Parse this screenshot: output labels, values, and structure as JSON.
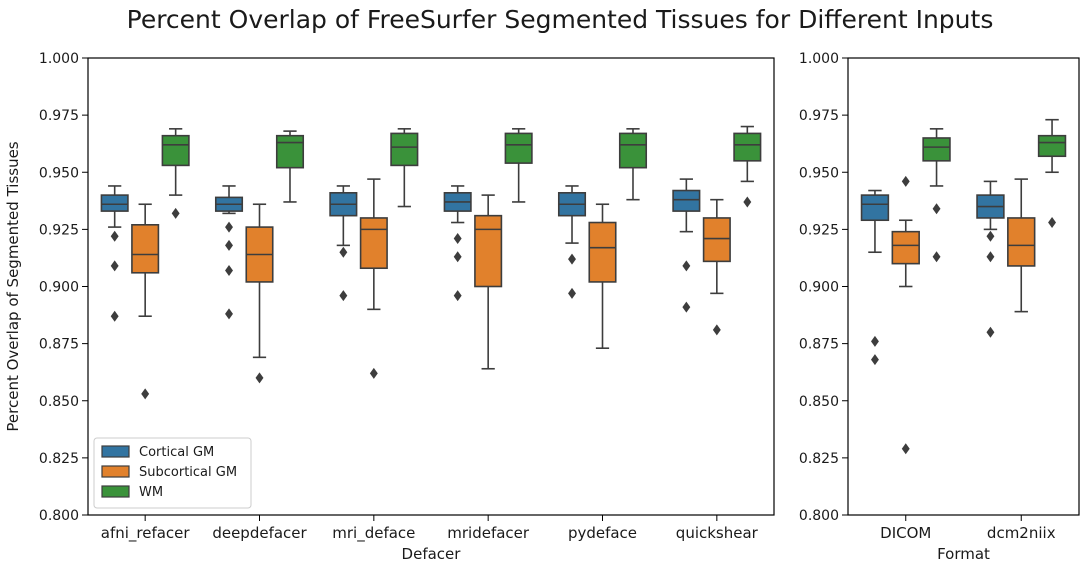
{
  "title": "Percent Overlap of FreeSurfer Segmented Tissues for Different Inputs",
  "colors": {
    "Cortical GM": "#3274a1",
    "Subcortical GM": "#e1812c",
    "WM": "#3a923a",
    "edge": "#3d3d3d",
    "outlier": "#3d3d3d"
  },
  "chart_data": [
    {
      "type": "box",
      "id": "defacer",
      "xlabel": "Defacer",
      "ylabel": "Percent Overlap of Segmented Tissues",
      "ylim": [
        0.8,
        1.0
      ],
      "yticks": [
        "0.800",
        "0.825",
        "0.850",
        "0.875",
        "0.900",
        "0.925",
        "0.950",
        "0.975",
        "1.000"
      ],
      "categories": [
        "afni_refacer",
        "deepdefacer",
        "mri_deface",
        "mridefacer",
        "pydeface",
        "quickshear"
      ],
      "legend": {
        "position": "lower-left",
        "entries": [
          "Cortical GM",
          "Subcortical GM",
          "WM"
        ]
      },
      "series": [
        {
          "name": "Cortical GM",
          "boxes": [
            {
              "min": 0.926,
              "q1": 0.933,
              "median": 0.936,
              "q3": 0.94,
              "max": 0.944,
              "outliers": [
                0.922,
                0.909,
                0.887
              ]
            },
            {
              "min": 0.932,
              "q1": 0.933,
              "median": 0.936,
              "q3": 0.939,
              "max": 0.944,
              "outliers": [
                0.926,
                0.918,
                0.907,
                0.888
              ]
            },
            {
              "min": 0.918,
              "q1": 0.931,
              "median": 0.936,
              "q3": 0.941,
              "max": 0.944,
              "outliers": [
                0.915,
                0.896
              ]
            },
            {
              "min": 0.928,
              "q1": 0.933,
              "median": 0.937,
              "q3": 0.941,
              "max": 0.944,
              "outliers": [
                0.921,
                0.913,
                0.896
              ]
            },
            {
              "min": 0.919,
              "q1": 0.931,
              "median": 0.936,
              "q3": 0.941,
              "max": 0.944,
              "outliers": [
                0.912,
                0.897
              ]
            },
            {
              "min": 0.924,
              "q1": 0.933,
              "median": 0.938,
              "q3": 0.942,
              "max": 0.947,
              "outliers": [
                0.909,
                0.891
              ]
            }
          ]
        },
        {
          "name": "Subcortical GM",
          "boxes": [
            {
              "min": 0.887,
              "q1": 0.906,
              "median": 0.914,
              "q3": 0.927,
              "max": 0.936,
              "outliers": [
                0.853
              ]
            },
            {
              "min": 0.869,
              "q1": 0.902,
              "median": 0.914,
              "q3": 0.926,
              "max": 0.936,
              "outliers": [
                0.86
              ]
            },
            {
              "min": 0.89,
              "q1": 0.908,
              "median": 0.925,
              "q3": 0.93,
              "max": 0.947,
              "outliers": [
                0.862
              ]
            },
            {
              "min": 0.864,
              "q1": 0.9,
              "median": 0.925,
              "q3": 0.931,
              "max": 0.94,
              "outliers": []
            },
            {
              "min": 0.873,
              "q1": 0.902,
              "median": 0.917,
              "q3": 0.928,
              "max": 0.936,
              "outliers": []
            },
            {
              "min": 0.897,
              "q1": 0.911,
              "median": 0.921,
              "q3": 0.93,
              "max": 0.938,
              "outliers": [
                0.881
              ]
            }
          ]
        },
        {
          "name": "WM",
          "boxes": [
            {
              "min": 0.94,
              "q1": 0.953,
              "median": 0.962,
              "q3": 0.966,
              "max": 0.969,
              "outliers": [
                0.932
              ]
            },
            {
              "min": 0.937,
              "q1": 0.952,
              "median": 0.963,
              "q3": 0.966,
              "max": 0.968,
              "outliers": []
            },
            {
              "min": 0.935,
              "q1": 0.953,
              "median": 0.961,
              "q3": 0.967,
              "max": 0.969,
              "outliers": []
            },
            {
              "min": 0.937,
              "q1": 0.954,
              "median": 0.962,
              "q3": 0.967,
              "max": 0.969,
              "outliers": []
            },
            {
              "min": 0.938,
              "q1": 0.952,
              "median": 0.962,
              "q3": 0.967,
              "max": 0.969,
              "outliers": []
            },
            {
              "min": 0.946,
              "q1": 0.955,
              "median": 0.962,
              "q3": 0.967,
              "max": 0.97,
              "outliers": [
                0.937
              ]
            }
          ]
        }
      ]
    },
    {
      "type": "box",
      "id": "format",
      "xlabel": "Format",
      "ylabel": "",
      "ylim": [
        0.8,
        1.0
      ],
      "yticks": [
        "0.800",
        "0.825",
        "0.850",
        "0.875",
        "0.900",
        "0.925",
        "0.950",
        "0.975",
        "1.000"
      ],
      "categories": [
        "DICOM",
        "dcm2niix"
      ],
      "series": [
        {
          "name": "Cortical GM",
          "boxes": [
            {
              "min": 0.915,
              "q1": 0.929,
              "median": 0.936,
              "q3": 0.94,
              "max": 0.942,
              "outliers": [
                0.876,
                0.868
              ]
            },
            {
              "min": 0.925,
              "q1": 0.93,
              "median": 0.935,
              "q3": 0.94,
              "max": 0.946,
              "outliers": [
                0.922,
                0.913,
                0.88
              ]
            }
          ]
        },
        {
          "name": "Subcortical GM",
          "boxes": [
            {
              "min": 0.9,
              "q1": 0.91,
              "median": 0.918,
              "q3": 0.924,
              "max": 0.929,
              "outliers": [
                0.946,
                0.829
              ]
            },
            {
              "min": 0.889,
              "q1": 0.909,
              "median": 0.918,
              "q3": 0.93,
              "max": 0.947,
              "outliers": []
            }
          ]
        },
        {
          "name": "WM",
          "boxes": [
            {
              "min": 0.944,
              "q1": 0.955,
              "median": 0.961,
              "q3": 0.965,
              "max": 0.969,
              "outliers": [
                0.934,
                0.913
              ]
            },
            {
              "min": 0.95,
              "q1": 0.957,
              "median": 0.963,
              "q3": 0.966,
              "max": 0.973,
              "outliers": [
                0.928
              ]
            }
          ]
        }
      ]
    }
  ]
}
